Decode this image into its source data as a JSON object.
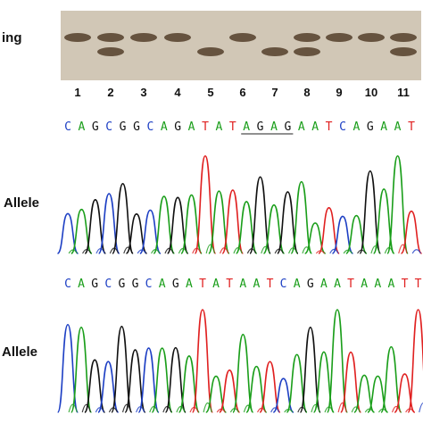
{
  "gel": {
    "label": "ing",
    "lanes": [
      "1",
      "2",
      "3",
      "4",
      "5",
      "6",
      "7",
      "8",
      "9",
      "10",
      "11"
    ],
    "lane_bands": [
      [
        "upper"
      ],
      [
        "upper",
        "lower"
      ],
      [
        "upper"
      ],
      [
        "upper"
      ],
      [
        "lower"
      ],
      [
        "upper"
      ],
      [
        "lower"
      ],
      [
        "upper",
        "lower"
      ],
      [
        "upper"
      ],
      [
        "upper"
      ],
      [
        "upper",
        "lower"
      ]
    ]
  },
  "colors": {
    "A": "#1a9e1a",
    "C": "#1d3fc4",
    "G": "#111111",
    "T": "#e02020",
    "gel_bg": "#d6cdbd",
    "band": "#5a4632"
  },
  "trace1": {
    "label": "Allele",
    "sequence": "CAGCGGCAGATATAGAGAATCAGAAT",
    "underline": "AGAG"
  },
  "trace2": {
    "label": "Allele",
    "sequence": "CAGCGGCAGATATAATCAGAATAAATT"
  }
}
